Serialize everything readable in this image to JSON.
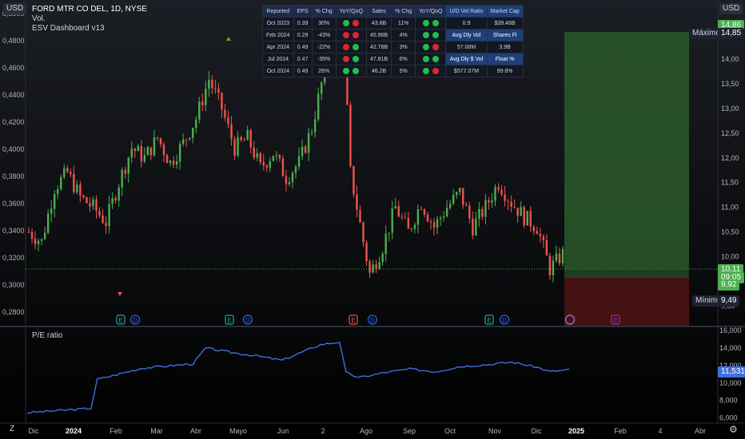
{
  "header": {
    "symbol": "FORD MTR CO DEL, 1D, NYSE",
    "indicator_1": "Vol.",
    "indicator_2": "ESV Dashboard v13",
    "currency_left": "USD",
    "currency_right": "USD"
  },
  "dashboard": {
    "headers": [
      "Reported",
      "EPS",
      "% Chg",
      "YoY/QoQ",
      "Sales",
      "% Chg",
      "YoY/QoQ"
    ],
    "rows": [
      {
        "date": "Oct 2023",
        "eps": "0.39",
        "eps_chg": "30%",
        "eps_neg": false,
        "eps_dots": [
          "g",
          "r"
        ],
        "sales": "43.8B",
        "sales_chg": "11%",
        "sales_dots": [
          "g",
          "g"
        ],
        "k": "0.9",
        "v": "$39.46B",
        "k_hl": false,
        "v_hl": false
      },
      {
        "date": "Feb 2024",
        "eps": "0.29",
        "eps_chg": "-43%",
        "eps_neg": true,
        "eps_dots": [
          "r",
          "r"
        ],
        "sales": "45.96B",
        "sales_chg": "4%",
        "sales_dots": [
          "g",
          "g"
        ],
        "k": "Avg Dly Vol",
        "v": "Shares Fl",
        "k_hl": true,
        "v_hl": true
      },
      {
        "date": "Apr 2024",
        "eps": "0.49",
        "eps_chg": "-22%",
        "eps_neg": true,
        "eps_dots": [
          "r",
          "g"
        ],
        "sales": "42.78B",
        "sales_chg": "3%",
        "sales_dots": [
          "g",
          "r"
        ],
        "k": "57.08M",
        "v": "3.9B",
        "k_hl": false,
        "v_hl": false
      },
      {
        "date": "Jul 2024",
        "eps": "0.47",
        "eps_chg": "-35%",
        "eps_neg": true,
        "eps_dots": [
          "r",
          "g"
        ],
        "sales": "47.81B",
        "sales_chg": "6%",
        "sales_dots": [
          "g",
          "g"
        ],
        "k": "Avg Dly $ Vol",
        "v": "Float %",
        "k_hl": true,
        "v_hl": true
      },
      {
        "date": "Oct 2024",
        "eps": "0.49",
        "eps_chg": "26%",
        "eps_neg": false,
        "eps_dots": [
          "g",
          "g"
        ],
        "sales": "46.2B",
        "sales_chg": "5%",
        "sales_dots": [
          "g",
          "r"
        ],
        "k": "$577.07M",
        "v": "99.8%",
        "k_hl": false,
        "v_hl": false
      }
    ],
    "extra_headers": [
      "U/D Vol Ratio",
      "Market Cap"
    ]
  },
  "chart_data": [
    {
      "type": "candlestick",
      "title": "FORD MTR CO DEL, 1D, NYSE",
      "x_ticks": [
        "Dic",
        "2024",
        "Feb",
        "Mar",
        "Abr",
        "Mayo",
        "Jun",
        "2",
        "Ago",
        "Sep",
        "Oct",
        "Nov",
        "Dic",
        "2025",
        "Feb",
        "4",
        "Abr"
      ],
      "left_axis": {
        "label": "USD",
        "ylim": [
          0.27,
          0.51
        ],
        "ticks": [
          "0,5000",
          "0,4800",
          "0,4600",
          "0,4400",
          "0,4200",
          "0,4000",
          "0,3800",
          "0,3600",
          "0,3400",
          "0,3200",
          "0,3000",
          "0,2800"
        ]
      },
      "right_axis": {
        "label": "USD",
        "ylim": [
          8.6,
          15.2
        ],
        "ticks": [
          "14,50",
          "14,00",
          "13,50",
          "13,00",
          "12,50",
          "12,00",
          "11,50",
          "11,00",
          "10,50",
          "10,00",
          "9,00"
        ]
      },
      "series": [
        {
          "name": "price",
          "path_points": [
            [
              0,
              10.5
            ],
            [
              4,
              10.3
            ],
            [
              8,
              11.4
            ],
            [
              12,
              11.7
            ],
            [
              16,
              11.2
            ],
            [
              20,
              11.0
            ],
            [
              24,
              10.7
            ],
            [
              28,
              11.5
            ],
            [
              32,
              12.2
            ],
            [
              36,
              12.0
            ],
            [
              40,
              12.4
            ],
            [
              44,
              11.9
            ],
            [
              48,
              12.3
            ],
            [
              52,
              12.8
            ],
            [
              56,
              13.6
            ],
            [
              60,
              13.0
            ],
            [
              64,
              12.2
            ],
            [
              68,
              12.4
            ],
            [
              72,
              11.8
            ],
            [
              76,
              12.1
            ],
            [
              80,
              11.6
            ],
            [
              84,
              11.9
            ],
            [
              88,
              12.6
            ],
            [
              92,
              13.8
            ],
            [
              96,
              14.6
            ],
            [
              98,
              14.2
            ],
            [
              100,
              11.7
            ],
            [
              104,
              10.3
            ],
            [
              106,
              9.65
            ],
            [
              110,
              10.2
            ],
            [
              114,
              11.0
            ],
            [
              118,
              10.5
            ],
            [
              122,
              11.1
            ],
            [
              126,
              10.6
            ],
            [
              130,
              11.0
            ],
            [
              134,
              11.3
            ],
            [
              138,
              10.6
            ],
            [
              142,
              11.0
            ],
            [
              146,
              11.5
            ],
            [
              150,
              11.1
            ],
            [
              154,
              10.8
            ],
            [
              158,
              10.6
            ],
            [
              162,
              9.75
            ],
            [
              166,
              10.05
            ]
          ]
        },
        {
          "name": "markers",
          "labels": [
            "E",
            "D",
            "E",
            "D",
            "E",
            "D",
            "E",
            "D",
            "E"
          ]
        }
      ],
      "price_labels": {
        "max_label": "Máximo",
        "max_value": "14,85",
        "top_value": "14,86",
        "min_label": "Mínimo",
        "min_value": "9,49",
        "last_value": "10,11",
        "countdown": "09:05",
        "stop_value": "9,92"
      }
    },
    {
      "type": "line",
      "title": "P/E ratio",
      "ylim": [
        5600,
        16200
      ],
      "ticks": [
        "16,000",
        "14,000",
        "12,000",
        "10,000",
        "8,000",
        "6,000"
      ],
      "last_value": "11,531",
      "series": [
        {
          "name": "P/E ratio",
          "points": [
            [
              0,
              6600
            ],
            [
              20,
              7100
            ],
            [
              22,
              10400
            ],
            [
              36,
              11700
            ],
            [
              52,
              12200
            ],
            [
              56,
              14000
            ],
            [
              64,
              13500
            ],
            [
              72,
              13100
            ],
            [
              80,
              12600
            ],
            [
              92,
              14400
            ],
            [
              98,
              14700
            ],
            [
              100,
              11200
            ],
            [
              104,
              10600
            ],
            [
              112,
              11200
            ],
            [
              120,
              11600
            ],
            [
              128,
              11300
            ],
            [
              136,
              11900
            ],
            [
              144,
              12100
            ],
            [
              152,
              12400
            ],
            [
              160,
              11800
            ],
            [
              164,
              11300
            ],
            [
              170,
              11530
            ]
          ]
        }
      ]
    }
  ],
  "colors": {
    "up": "#26a69a",
    "up_bright": "#4caf50",
    "down": "#ef5350",
    "pe_line": "#3d6fe0",
    "green_zone": "#2e6b2e",
    "red_zone": "#5a1a1a"
  },
  "footer": {
    "tz_icon": "Z",
    "gear_icon": "settings"
  }
}
